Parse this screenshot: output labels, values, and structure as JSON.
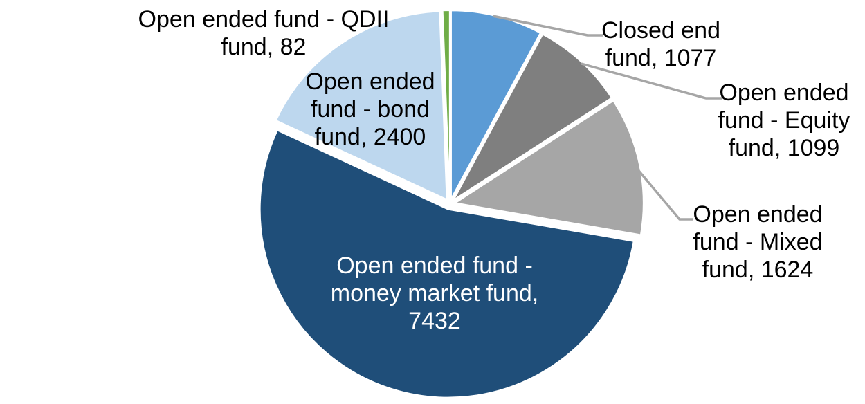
{
  "chart_data": {
    "type": "pie",
    "title": "",
    "legend": "none",
    "background": "#FFFFFF",
    "total": 13714,
    "start_angle_deg": 0,
    "direction": "clockwise",
    "leader_line_color": "#A6A6A6",
    "slices": [
      {
        "name": "Closed end fund",
        "value": 1077,
        "color": "#5B9BD5",
        "label": "Closed end\nfund, 1077",
        "label_color": "#000000",
        "label_placement": "outside-right-with-leader"
      },
      {
        "name": "Open ended fund - Equity fund",
        "value": 1099,
        "color": "#7F7F7F",
        "label": "Open ended\nfund - Equity\nfund, 1099",
        "label_color": "#000000",
        "label_placement": "outside-right-with-leader"
      },
      {
        "name": "Open ended fund - Mixed fund",
        "value": 1624,
        "color": "#A6A6A6",
        "label": "Open ended\nfund - Mixed\nfund, 1624",
        "label_color": "#000000",
        "label_placement": "outside-right-with-leader"
      },
      {
        "name": "Open ended fund - money market fund",
        "value": 7432,
        "color": "#1F4E79",
        "label": "Open ended fund -\nmoney market fund,\n7432",
        "label_color": "#FFFFFF",
        "label_placement": "inside"
      },
      {
        "name": "Open ended fund - bond fund",
        "value": 2400,
        "color": "#BDD7EE",
        "label": "Open ended\nfund - bond\nfund, 2400",
        "label_color": "#000000",
        "label_placement": "inside"
      },
      {
        "name": "Open ended fund - QDII fund",
        "value": 82,
        "color": "#70AD47",
        "label": "Open ended fund - QDII\nfund, 82",
        "label_color": "#000000",
        "label_placement": "outside-left"
      }
    ]
  }
}
